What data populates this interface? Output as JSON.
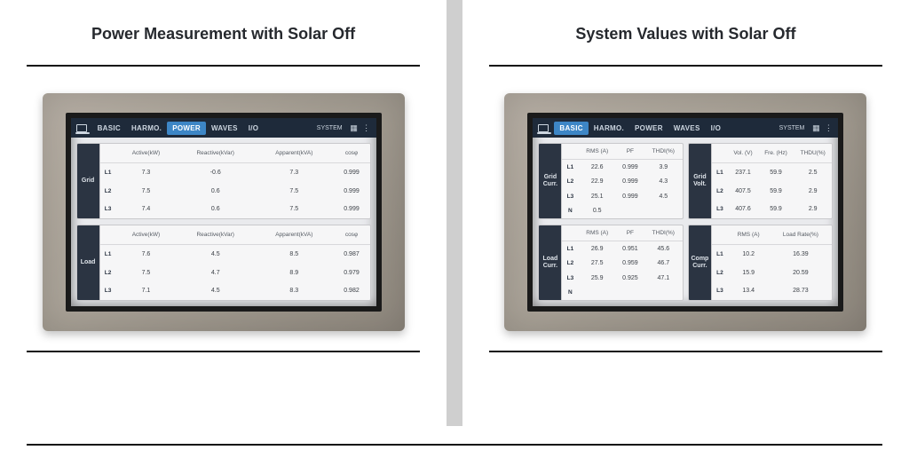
{
  "left": {
    "title": "Power Measurement with Solar Off",
    "tabs": [
      "BASIC",
      "HARMO.",
      "POWER",
      "WAVES",
      "I/O"
    ],
    "active_tab": "POWER",
    "system_label": "SYSTEM",
    "grid_label": "Grid",
    "load_label": "Load",
    "columns": [
      "Active(kW)",
      "Reactive(kVar)",
      "Apparent(kVA)",
      "cosφ"
    ],
    "grid_rows": [
      {
        "ph": "L1",
        "active": "7.3",
        "reactive": "-0.6",
        "apparent": "7.3",
        "cos": "0.999"
      },
      {
        "ph": "L2",
        "active": "7.5",
        "reactive": "0.6",
        "apparent": "7.5",
        "cos": "0.999"
      },
      {
        "ph": "L3",
        "active": "7.4",
        "reactive": "0.6",
        "apparent": "7.5",
        "cos": "0.999"
      }
    ],
    "load_rows": [
      {
        "ph": "L1",
        "active": "7.6",
        "reactive": "4.5",
        "apparent": "8.5",
        "cos": "0.987"
      },
      {
        "ph": "L2",
        "active": "7.5",
        "reactive": "4.7",
        "apparent": "8.9",
        "cos": "0.979"
      },
      {
        "ph": "L3",
        "active": "7.1",
        "reactive": "4.5",
        "apparent": "8.3",
        "cos": "0.982"
      }
    ]
  },
  "right": {
    "title": "System Values with Solar Off",
    "tabs": [
      "BASIC",
      "HARMO.",
      "POWER",
      "WAVES",
      "I/O"
    ],
    "active_tab": "BASIC",
    "system_label": "SYSTEM",
    "grid_curr_label": "Grid\nCurr.",
    "grid_volt_label": "Grid\nVolt.",
    "load_curr_label": "Load\nCurr.",
    "comp_curr_label": "Comp\nCurr.",
    "curr_cols": [
      "RMS (A)",
      "PF",
      "THDI(%)"
    ],
    "volt_cols": [
      "Vol. (V)",
      "Fre. (Hz)",
      "THDU(%)"
    ],
    "comp_cols": [
      "RMS (A)",
      "Load Rate(%)"
    ],
    "grid_curr_rows": [
      {
        "ph": "L1",
        "a": "22.6",
        "b": "0.999",
        "c": "3.9"
      },
      {
        "ph": "L2",
        "a": "22.9",
        "b": "0.999",
        "c": "4.3"
      },
      {
        "ph": "L3",
        "a": "25.1",
        "b": "0.999",
        "c": "4.5"
      },
      {
        "ph": "N",
        "a": "0.5",
        "b": "",
        "c": ""
      }
    ],
    "grid_volt_rows": [
      {
        "ph": "L1",
        "a": "237.1",
        "b": "59.9",
        "c": "2.5"
      },
      {
        "ph": "L2",
        "a": "407.5",
        "b": "59.9",
        "c": "2.9"
      },
      {
        "ph": "L3",
        "a": "407.6",
        "b": "59.9",
        "c": "2.9"
      }
    ],
    "load_curr_rows": [
      {
        "ph": "L1",
        "a": "26.9",
        "b": "0.951",
        "c": "45.6"
      },
      {
        "ph": "L2",
        "a": "27.5",
        "b": "0.959",
        "c": "46.7"
      },
      {
        "ph": "L3",
        "a": "25.9",
        "b": "0.925",
        "c": "47.1"
      },
      {
        "ph": "N",
        "a": "",
        "b": "",
        "c": ""
      }
    ],
    "comp_curr_rows": [
      {
        "ph": "L1",
        "a": "10.2",
        "b": "16.39"
      },
      {
        "ph": "L2",
        "a": "15.9",
        "b": "20.59"
      },
      {
        "ph": "L3",
        "a": "13.4",
        "b": "28.73"
      }
    ]
  },
  "colors": {
    "bezel": "#a9a297",
    "screen_bg": "#e9eaed",
    "topbar": "#1e2a3a",
    "active_tab": "#3d86c6",
    "panel_bg": "#f6f6f7",
    "sidelabel": "#2b3442",
    "divider": "#cfcfcf",
    "rule": "#111111"
  }
}
